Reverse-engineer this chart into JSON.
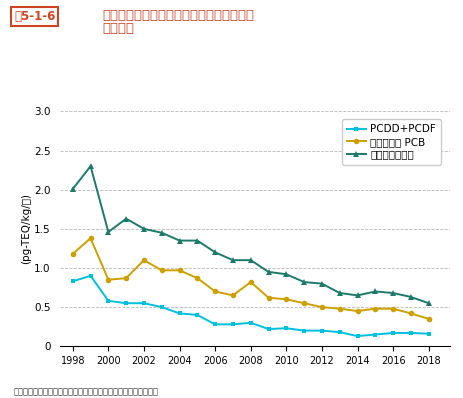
{
  "title_box": "図5-1-6",
  "title_main1": "食品からのダイオキシン類の一日摂取量の",
  "title_main2": "経年変化",
  "ylabel": "(pg-TEQ/kg/日)",
  "source": "資料：厚生労働省「食品からのダイオキシン類一日摂取量調査」",
  "ylim": [
    0,
    3.0
  ],
  "yticks": [
    0,
    0.5,
    1.0,
    1.5,
    2.0,
    2.5,
    3.0
  ],
  "xticks": [
    1998,
    2000,
    2002,
    2004,
    2006,
    2008,
    2010,
    2012,
    2014,
    2016,
    2018
  ],
  "years": [
    1998,
    1999,
    2000,
    2001,
    2002,
    2003,
    2004,
    2005,
    2006,
    2007,
    2008,
    2009,
    2010,
    2011,
    2012,
    2013,
    2014,
    2015,
    2016,
    2017,
    2018
  ],
  "pcdd_pcdf": [
    0.83,
    0.9,
    0.58,
    0.55,
    0.55,
    0.5,
    0.42,
    0.4,
    0.28,
    0.28,
    0.3,
    0.22,
    0.23,
    0.2,
    0.2,
    0.18,
    0.13,
    0.15,
    0.17,
    0.17,
    0.16
  ],
  "coplanar_pcb": [
    1.18,
    1.38,
    0.85,
    0.87,
    1.1,
    0.97,
    0.97,
    0.87,
    0.7,
    0.65,
    0.82,
    0.62,
    0.6,
    0.55,
    0.5,
    0.48,
    0.45,
    0.48,
    0.48,
    0.42,
    0.35
  ],
  "dioxin": [
    2.01,
    2.3,
    1.46,
    1.63,
    1.5,
    1.45,
    1.35,
    1.35,
    1.2,
    1.1,
    1.1,
    0.95,
    0.92,
    0.82,
    0.8,
    0.68,
    0.65,
    0.7,
    0.68,
    0.63,
    0.55
  ],
  "color_pcdd": "#00BFDF",
  "color_coplanar": "#CDA000",
  "color_dioxin": "#1D7A6A",
  "legend_label_pcdd": "PCDD+PCDF",
  "legend_label_coplanar": "コプラナー PCB",
  "legend_label_dioxin": "ダイオキシン類",
  "title_box_color": "#CC4422",
  "title_text_color": "#CC4422",
  "background_color": "#ffffff",
  "grid_color": "#999999"
}
